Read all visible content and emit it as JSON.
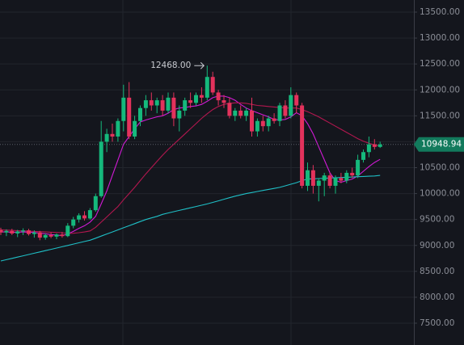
{
  "chart_data": {
    "type": "candlestick",
    "open": [
      9300,
      9250,
      9280,
      9230,
      9270,
      9290,
      9220,
      9250,
      9150,
      9200,
      9170,
      9210,
      9180,
      9380,
      9500,
      9580,
      9520,
      9680,
      9950,
      11000,
      11150,
      11100,
      11400,
      11850,
      11100,
      11400,
      11650,
      11800,
      11700,
      11800,
      11600,
      11850,
      11450,
      11600,
      11800,
      11750,
      11900,
      11850,
      12250,
      11950,
      11800,
      11750,
      11500,
      11600,
      11500,
      11600,
      11200,
      11400,
      11300,
      11450,
      11400,
      11700,
      11500,
      11900,
      11700,
      10150,
      10450,
      10150,
      10250,
      10350,
      10150,
      10300,
      10250,
      10400,
      10350,
      10650,
      10800,
      10950,
      10900
    ],
    "high": [
      9340,
      9310,
      9320,
      9300,
      9330,
      9320,
      9290,
      9280,
      9230,
      9250,
      9230,
      9260,
      9430,
      9550,
      9620,
      9660,
      9720,
      10000,
      11400,
      11250,
      11350,
      11450,
      12100,
      12150,
      11500,
      11700,
      11900,
      11950,
      11850,
      11900,
      11950,
      11950,
      11700,
      11850,
      11950,
      11950,
      12050,
      12468,
      12350,
      12000,
      11900,
      11850,
      11650,
      11700,
      11650,
      11850,
      11450,
      11500,
      11500,
      11550,
      11750,
      11800,
      12050,
      11950,
      11750,
      10600,
      10550,
      10300,
      10400,
      10400,
      10350,
      10400,
      10450,
      10500,
      10750,
      10850,
      11100,
      11050,
      11000
    ],
    "low": [
      9200,
      9180,
      9200,
      9160,
      9200,
      9190,
      9150,
      9100,
      9110,
      9140,
      9120,
      9150,
      9160,
      9330,
      9440,
      9480,
      9500,
      9650,
      9920,
      10800,
      11000,
      11000,
      11200,
      11050,
      11050,
      11300,
      11500,
      11600,
      11550,
      11500,
      11550,
      11300,
      11200,
      11500,
      11650,
      11700,
      11750,
      11800,
      11900,
      11700,
      11650,
      11450,
      11400,
      11450,
      11400,
      11100,
      11100,
      11200,
      11200,
      11350,
      11300,
      11450,
      11450,
      11550,
      10100,
      10050,
      10000,
      9850,
      9950,
      10100,
      10000,
      10200,
      10200,
      10300,
      10300,
      10600,
      10700,
      10850,
      10880
    ],
    "close": [
      9250,
      9280,
      9230,
      9270,
      9290,
      9220,
      9250,
      9150,
      9200,
      9170,
      9210,
      9180,
      9380,
      9500,
      9580,
      9520,
      9680,
      9950,
      11000,
      11150,
      11100,
      11400,
      11850,
      11100,
      11400,
      11650,
      11800,
      11700,
      11800,
      11600,
      11850,
      11450,
      11600,
      11800,
      11750,
      11900,
      11850,
      12250,
      11950,
      11800,
      11750,
      11500,
      11600,
      11500,
      11600,
      11200,
      11400,
      11300,
      11450,
      11400,
      11700,
      11500,
      11900,
      11700,
      10150,
      10450,
      10150,
      10250,
      10350,
      10150,
      10300,
      10250,
      10400,
      10350,
      10650,
      10800,
      10950,
      10900,
      10948.94
    ],
    "up_color": "#15b97c",
    "down_color": "#e3325c",
    "lines": [
      {
        "color": "#d21ad6",
        "values": [
          9260,
          9260,
          9255,
          9255,
          9260,
          9255,
          9250,
          9235,
          9225,
          9210,
          9200,
          9190,
          9220,
          9270,
          9330,
          9380,
          9450,
          9560,
          9800,
          10050,
          10350,
          10650,
          10950,
          11100,
          11250,
          11380,
          11420,
          11450,
          11480,
          11500,
          11550,
          11620,
          11650,
          11660,
          11680,
          11690,
          11720,
          11780,
          11850,
          11880,
          11880,
          11850,
          11800,
          11720,
          11650,
          11600,
          11560,
          11520,
          11480,
          11430,
          11420,
          11430,
          11480,
          11560,
          11500,
          11350,
          11150,
          10900,
          10650,
          10400,
          10250,
          10220,
          10250,
          10280,
          10340,
          10430,
          10520,
          10600,
          10660
        ]
      },
      {
        "color": "#b3174f",
        "values": [
          9300,
          9295,
          9290,
          9285,
          9280,
          9275,
          9270,
          9265,
          9260,
          9255,
          9250,
          9245,
          9230,
          9235,
          9245,
          9260,
          9280,
          9350,
          9450,
          9550,
          9650,
          9750,
          9880,
          10000,
          10120,
          10250,
          10380,
          10500,
          10620,
          10740,
          10850,
          10950,
          11050,
          11150,
          11250,
          11350,
          11450,
          11540,
          11620,
          11680,
          11720,
          11740,
          11750,
          11750,
          11740,
          11720,
          11700,
          11690,
          11680,
          11670,
          11660,
          11650,
          11650,
          11650,
          11620,
          11580,
          11530,
          11480,
          11420,
          11360,
          11300,
          11240,
          11180,
          11120,
          11060,
          11010,
          10970,
          10940,
          10920
        ]
      },
      {
        "color": "#1fbfc6",
        "values": [
          8700,
          8725,
          8750,
          8775,
          8800,
          8825,
          8850,
          8875,
          8900,
          8925,
          8950,
          8975,
          9000,
          9025,
          9050,
          9075,
          9100,
          9140,
          9180,
          9220,
          9260,
          9300,
          9340,
          9380,
          9420,
          9460,
          9500,
          9530,
          9560,
          9600,
          9625,
          9650,
          9675,
          9700,
          9725,
          9750,
          9775,
          9800,
          9830,
          9860,
          9890,
          9920,
          9950,
          9975,
          10000,
          10020,
          10040,
          10060,
          10080,
          10100,
          10120,
          10150,
          10180,
          10210,
          10250,
          10280,
          10285,
          10290,
          10295,
          10300,
          10305,
          10310,
          10315,
          10320,
          10325,
          10330,
          10335,
          10340,
          10350
        ]
      }
    ],
    "ylim": [
      7500,
      13500
    ],
    "yticks": [
      {
        "value": 7500,
        "label": "7500.00"
      },
      {
        "value": 8000,
        "label": "8000.00"
      },
      {
        "value": 8500,
        "label": "8500.00"
      },
      {
        "value": 9000,
        "label": "9000.00"
      },
      {
        "value": 9500,
        "label": "9500.00"
      },
      {
        "value": 10000,
        "label": "10000.00"
      },
      {
        "value": 10500,
        "label": "10500.00"
      },
      {
        "value": 11000,
        "label": "11000.00"
      },
      {
        "value": 11500,
        "label": "11500.00"
      },
      {
        "value": 12000,
        "label": "12000.00"
      },
      {
        "value": 12500,
        "label": "12500.00"
      },
      {
        "value": 13000,
        "label": "13000.00"
      },
      {
        "value": 13500,
        "label": "13500.00"
      }
    ],
    "grid": true,
    "annotation": {
      "value": 12468,
      "label": "12468.00"
    },
    "last_price": {
      "value": 10948.94,
      "label": "10948.94",
      "color": "#127a5c"
    }
  }
}
